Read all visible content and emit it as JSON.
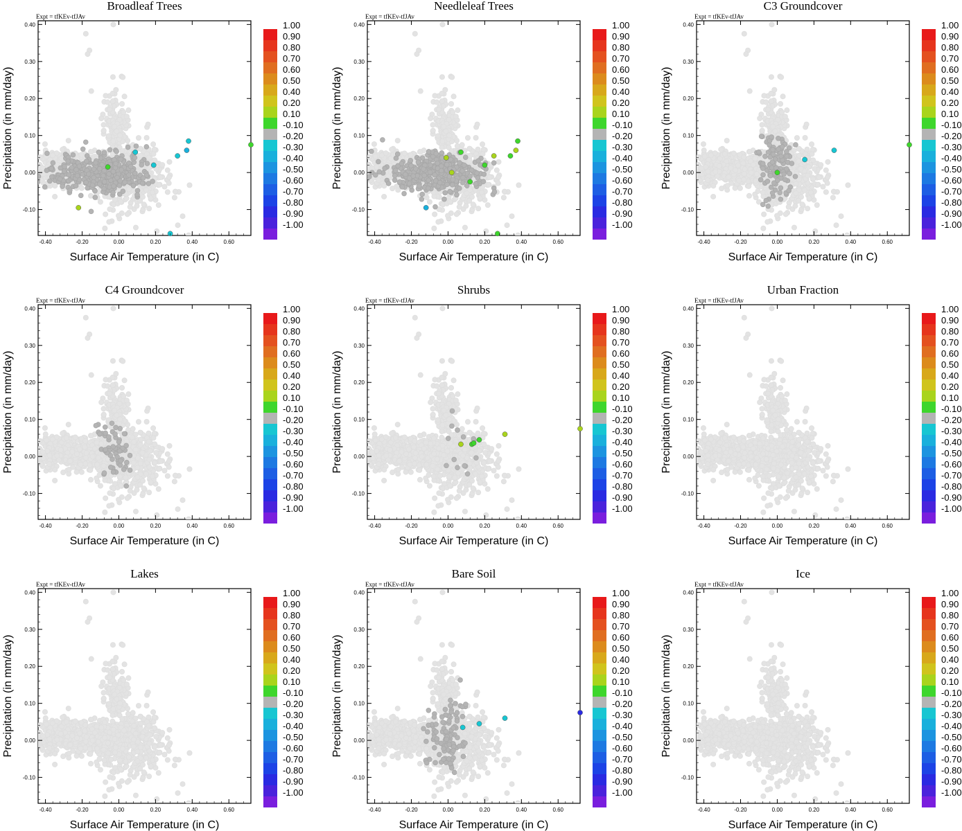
{
  "figure": {
    "expt_label": "Expt = tfKEv-tfJAv",
    "xlabel": "Surface Air Temperature (in C)",
    "ylabel": "Precipitation (in mm/day)"
  },
  "colorbar": {
    "labels": [
      "1.00",
      "0.90",
      "0.80",
      "0.70",
      "0.60",
      "0.50",
      "0.40",
      "0.20",
      "0.10",
      "-0.10",
      "-0.20",
      "-0.30",
      "-0.40",
      "-0.50",
      "-0.60",
      "-0.70",
      "-0.80",
      "-0.90",
      "-1.00"
    ],
    "colors": [
      "#e8191a",
      "#e6351c",
      "#e4511f",
      "#e06e20",
      "#dc8b1c",
      "#d8a81a",
      "#d0c41c",
      "#a9d41c",
      "#3ed62c",
      "#b4b4b4",
      "#17c6d2",
      "#19b0dc",
      "#1c94e0",
      "#1d79e2",
      "#1d5ee4",
      "#1c43e6",
      "#2a2ae2",
      "#4a22dc",
      "#7a1ede"
    ]
  },
  "chart_data": [
    {
      "type": "scatter",
      "title": "Broadleaf Trees",
      "xlim": [
        -0.44,
        0.72
      ],
      "ylim": [
        -0.17,
        0.41
      ],
      "xticks": [
        "-0.40",
        "-0.20",
        "0.00",
        "0.20",
        "0.40",
        "0.60"
      ],
      "yticks": [
        "0.40",
        "0.30",
        "0.20",
        "0.10",
        "0.00",
        "-0.10"
      ],
      "cloud_extent": "wide",
      "highlighted": [
        {
          "x": -0.11,
          "y": 0.0,
          "color": "#b4b4b4",
          "count": 400
        },
        {
          "x": -0.22,
          "y": 0.02,
          "color": "#b4b4b4",
          "count": 0
        },
        {
          "x": -0.06,
          "y": 0.015,
          "color": "#3ed62c"
        },
        {
          "x": -0.22,
          "y": -0.095,
          "color": "#a9d41c"
        },
        {
          "x": 0.19,
          "y": 0.02,
          "color": "#17c6d2"
        },
        {
          "x": 0.32,
          "y": 0.045,
          "color": "#17c6d2"
        },
        {
          "x": 0.37,
          "y": 0.06,
          "color": "#19b0dc"
        },
        {
          "x": 0.38,
          "y": 0.085,
          "color": "#17c6d2"
        },
        {
          "x": 0.09,
          "y": 0.055,
          "color": "#17c6d2"
        },
        {
          "x": 0.28,
          "y": -0.165,
          "color": "#17c6d2"
        },
        {
          "x": 0.72,
          "y": 0.075,
          "color": "#3ed62c"
        }
      ]
    },
    {
      "type": "scatter",
      "title": "Needleleaf Trees",
      "xlim": [
        -0.44,
        0.72
      ],
      "ylim": [
        -0.17,
        0.41
      ],
      "xticks": [
        "-0.40",
        "-0.20",
        "0.00",
        "0.20",
        "0.40",
        "0.60"
      ],
      "yticks": [
        "0.40",
        "0.30",
        "0.20",
        "0.10",
        "0.00",
        "-0.10"
      ],
      "cloud_extent": "wide",
      "highlighted": [
        {
          "x": -0.08,
          "y": 0.0,
          "color": "#b4b4b4",
          "count": 380
        },
        {
          "x": -0.01,
          "y": 0.04,
          "color": "#a9d41c"
        },
        {
          "x": 0.02,
          "y": 0.0,
          "color": "#a9d41c"
        },
        {
          "x": 0.07,
          "y": 0.055,
          "color": "#3ed62c"
        },
        {
          "x": 0.12,
          "y": -0.025,
          "color": "#3ed62c"
        },
        {
          "x": 0.2,
          "y": 0.02,
          "color": "#3ed62c"
        },
        {
          "x": 0.25,
          "y": 0.045,
          "color": "#a9d41c"
        },
        {
          "x": 0.34,
          "y": 0.045,
          "color": "#3ed62c"
        },
        {
          "x": 0.37,
          "y": 0.06,
          "color": "#a9d41c"
        },
        {
          "x": 0.38,
          "y": 0.085,
          "color": "#3ed62c"
        },
        {
          "x": -0.12,
          "y": -0.095,
          "color": "#19b0dc"
        },
        {
          "x": 0.27,
          "y": -0.165,
          "color": "#3ed62c"
        }
      ]
    },
    {
      "type": "scatter",
      "title": "C3 Groundcover",
      "xlim": [
        -0.44,
        0.72
      ],
      "ylim": [
        -0.17,
        0.41
      ],
      "xticks": [
        "-0.40",
        "-0.20",
        "0.00",
        "0.20",
        "0.40",
        "0.60"
      ],
      "yticks": [
        "0.40",
        "0.30",
        "0.20",
        "0.10",
        "0.00",
        "-0.10"
      ],
      "cloud_extent": "wide",
      "highlighted": [
        {
          "x": 0.0,
          "y": 0.02,
          "color": "#b4b4b4",
          "count": 120
        },
        {
          "x": 0.0,
          "y": 0.0,
          "color": "#3ed62c"
        },
        {
          "x": 0.15,
          "y": 0.035,
          "color": "#17c6d2"
        },
        {
          "x": 0.31,
          "y": 0.06,
          "color": "#17c6d2"
        },
        {
          "x": 0.72,
          "y": 0.075,
          "color": "#3ed62c"
        }
      ]
    },
    {
      "type": "scatter",
      "title": "C4 Groundcover",
      "xlim": [
        -0.44,
        0.72
      ],
      "ylim": [
        -0.17,
        0.41
      ],
      "xticks": [
        "-0.40",
        "-0.20",
        "0.00",
        "0.20",
        "0.40",
        "0.60"
      ],
      "yticks": [
        "0.40",
        "0.30",
        "0.20",
        "0.10",
        "0.00",
        "-0.10"
      ],
      "cloud_extent": "wide",
      "highlighted": [
        {
          "x": -0.03,
          "y": 0.03,
          "color": "#b4b4b4",
          "count": 60
        }
      ]
    },
    {
      "type": "scatter",
      "title": "Shrubs",
      "xlim": [
        -0.44,
        0.72
      ],
      "ylim": [
        -0.17,
        0.41
      ],
      "xticks": [
        "-0.40",
        "-0.20",
        "0.00",
        "0.20",
        "0.40",
        "0.60"
      ],
      "yticks": [
        "0.40",
        "0.30",
        "0.20",
        "0.10",
        "0.00",
        "-0.10"
      ],
      "cloud_extent": "wide",
      "highlighted": [
        {
          "x": 0.08,
          "y": 0.02,
          "color": "#b4b4b4",
          "count": 14
        },
        {
          "x": 0.07,
          "y": 0.033,
          "color": "#a9d41c"
        },
        {
          "x": 0.13,
          "y": 0.033,
          "color": "#3ed62c"
        },
        {
          "x": 0.14,
          "y": 0.036,
          "color": "#3ed62c"
        },
        {
          "x": 0.17,
          "y": 0.045,
          "color": "#3ed62c"
        },
        {
          "x": 0.31,
          "y": 0.06,
          "color": "#a9d41c"
        },
        {
          "x": 0.72,
          "y": 0.075,
          "color": "#a9d41c"
        }
      ]
    },
    {
      "type": "scatter",
      "title": "Urban Fraction",
      "xlim": [
        -0.44,
        0.72
      ],
      "ylim": [
        -0.17,
        0.41
      ],
      "xticks": [
        "-0.40",
        "-0.20",
        "0.00",
        "0.20",
        "0.40",
        "0.60"
      ],
      "yticks": [
        "0.40",
        "0.30",
        "0.20",
        "0.10",
        "0.00",
        "-0.10"
      ],
      "cloud_extent": "wide",
      "highlighted": []
    },
    {
      "type": "scatter",
      "title": "Lakes",
      "xlim": [
        -0.44,
        0.72
      ],
      "ylim": [
        -0.17,
        0.41
      ],
      "xticks": [
        "-0.40",
        "-0.20",
        "0.00",
        "0.20",
        "0.40",
        "0.60"
      ],
      "yticks": [
        "0.40",
        "0.30",
        "0.20",
        "0.10",
        "0.00",
        "-0.10"
      ],
      "cloud_extent": "wide",
      "highlighted": []
    },
    {
      "type": "scatter",
      "title": "Bare Soil",
      "xlim": [
        -0.44,
        0.72
      ],
      "ylim": [
        -0.17,
        0.41
      ],
      "xticks": [
        "-0.40",
        "-0.20",
        "0.00",
        "0.20",
        "0.40",
        "0.60"
      ],
      "yticks": [
        "0.40",
        "0.30",
        "0.20",
        "0.10",
        "0.00",
        "-0.10"
      ],
      "cloud_extent": "wide",
      "highlighted": [
        {
          "x": 0.0,
          "y": 0.01,
          "color": "#b4b4b4",
          "count": 110
        },
        {
          "x": 0.08,
          "y": 0.035,
          "color": "#17c6d2"
        },
        {
          "x": 0.17,
          "y": 0.045,
          "color": "#17c6d2"
        },
        {
          "x": 0.31,
          "y": 0.06,
          "color": "#17c6d2"
        },
        {
          "x": 0.72,
          "y": 0.075,
          "color": "#2a2ae2"
        }
      ]
    },
    {
      "type": "scatter",
      "title": "Ice",
      "xlim": [
        -0.44,
        0.72
      ],
      "ylim": [
        -0.17,
        0.41
      ],
      "xticks": [
        "-0.40",
        "-0.20",
        "0.00",
        "0.20",
        "0.40",
        "0.60"
      ],
      "yticks": [
        "0.40",
        "0.30",
        "0.20",
        "0.10",
        "0.00",
        "-0.10"
      ],
      "cloud_extent": "wide",
      "highlighted": []
    }
  ]
}
